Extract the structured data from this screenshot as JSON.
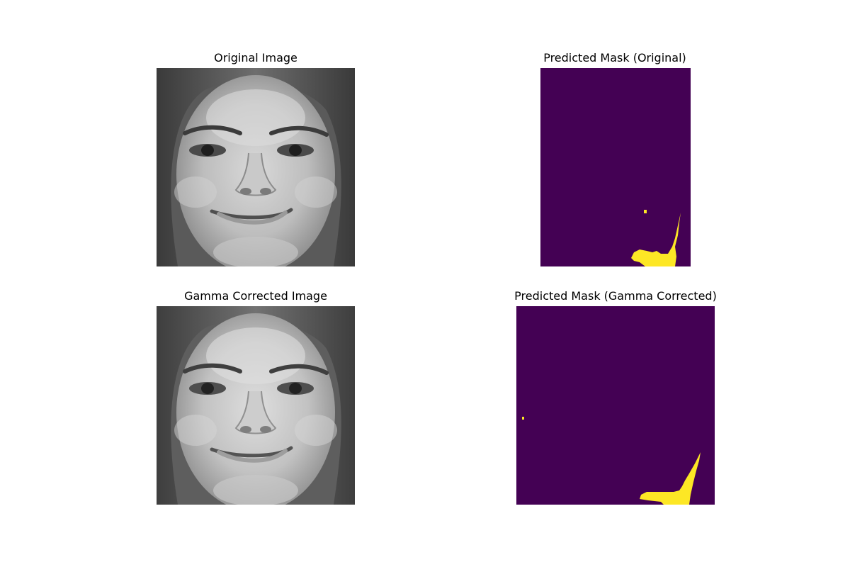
{
  "figure": {
    "panels": [
      {
        "title": "Original Image",
        "kind": "grayscale-face-photo"
      },
      {
        "title": "Predicted Mask (Original)",
        "kind": "segmentation-mask"
      },
      {
        "title": "Gamma Corrected Image",
        "kind": "grayscale-face-photo"
      },
      {
        "title": "Predicted Mask (Gamma Corrected)",
        "kind": "segmentation-mask"
      }
    ]
  },
  "colors": {
    "mask_background": "#440154",
    "mask_foreground": "#fde725",
    "page_background": "#ffffff"
  }
}
